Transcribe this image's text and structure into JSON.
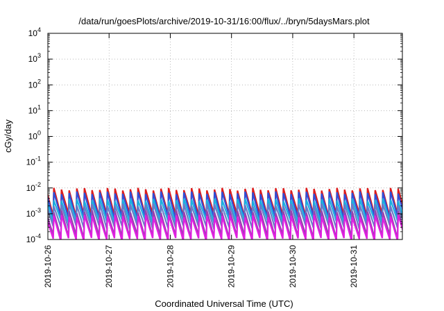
{
  "chart_data": {
    "type": "line",
    "title": "/data/run/goesPlots/archive/2019-10-31/16:00/flux/../bryn/5daysMars.plot",
    "xlabel": "Coordinated Universal Time (UTC)",
    "ylabel": "cGy/day",
    "y_scale": "log",
    "ylim": [
      0.0001,
      10000
    ],
    "xlim": [
      "2019-10-26T00:00",
      "2019-10-31T19:00"
    ],
    "y_ticks": [
      {
        "base": "10",
        "exp": "-4"
      },
      {
        "base": "10",
        "exp": "-3"
      },
      {
        "base": "10",
        "exp": "-2"
      },
      {
        "base": "10",
        "exp": "-1"
      },
      {
        "base": "10",
        "exp": "0"
      },
      {
        "base": "10",
        "exp": "1"
      },
      {
        "base": "10",
        "exp": "2"
      },
      {
        "base": "10",
        "exp": "3"
      },
      {
        "base": "10",
        "exp": "4"
      }
    ],
    "x_ticks": [
      "2019-10-26",
      "2019-10-27",
      "2019-10-28",
      "2019-10-29",
      "2019-10-30",
      "2019-10-31"
    ],
    "grid": true,
    "legend": "none",
    "sawtooth_period_hours": 3,
    "series": [
      {
        "color": "#dd1c1c",
        "peak": 0.009,
        "trough": 0.0009
      },
      {
        "color": "#2f4fd8",
        "peak": 0.0065,
        "trough": 0.0007
      },
      {
        "color": "#1bb0e0",
        "peak": 0.0035,
        "trough": 0.0005
      },
      {
        "color": "#6a7cc8",
        "peak": 0.0022,
        "trough": 0.0003
      },
      {
        "color": "#9a3fb0",
        "peak": 0.0012,
        "trough": 0.00013
      },
      {
        "color": "#e020e0",
        "peak": 0.0008,
        "trough": 0.0001
      }
    ]
  }
}
